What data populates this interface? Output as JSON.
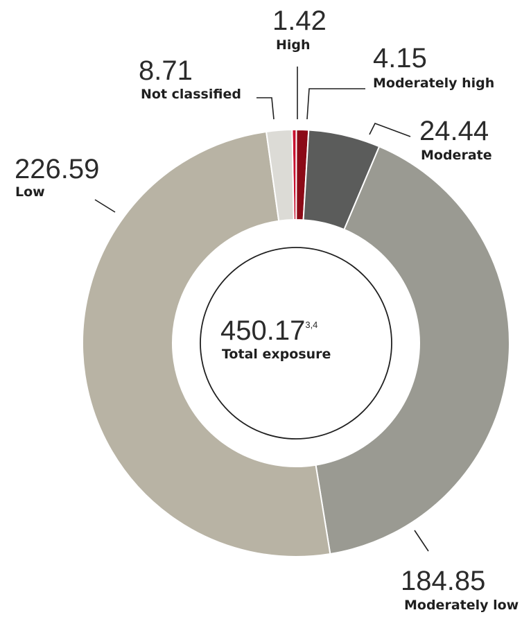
{
  "chart_data": {
    "type": "pie",
    "variant": "donut",
    "total": {
      "value": "450.17",
      "superscript": "3,4",
      "label": "Total exposure"
    },
    "slices": [
      {
        "name": "High",
        "value": 1.42,
        "color": "#c8102e"
      },
      {
        "name": "Moderately high",
        "value": 4.15,
        "color": "#8b0a17"
      },
      {
        "name": "Moderate",
        "value": 24.44,
        "color": "#5b5c5b"
      },
      {
        "name": "Moderately low",
        "value": 184.85,
        "color": "#9a9a92"
      },
      {
        "name": "Low",
        "value": 226.59,
        "color": "#b8b3a4"
      },
      {
        "name": "Not classified",
        "value": 8.71,
        "color": "#dcdbd6"
      }
    ],
    "labels": {
      "high": {
        "value": "1.42",
        "name": "High"
      },
      "moderately_high": {
        "value": "4.15",
        "name": "Moderately high"
      },
      "moderate": {
        "value": "24.44",
        "name": "Moderate"
      },
      "moderately_low": {
        "value": "184.85",
        "name": "Moderately low"
      },
      "low": {
        "value": "226.59",
        "name": "Low"
      },
      "not_classified": {
        "value": "8.71",
        "name": "Not classified"
      }
    }
  }
}
